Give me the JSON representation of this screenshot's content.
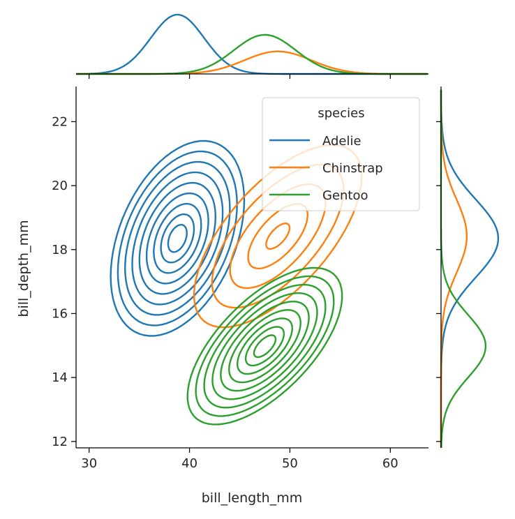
{
  "chart_data": {
    "type": "kde-joint",
    "xlabel": "bill_length_mm",
    "ylabel": "bill_depth_mm",
    "xlim": [
      28.7,
      63.8
    ],
    "ylim": [
      11.8,
      23.1
    ],
    "xticks": [
      30,
      40,
      50,
      60
    ],
    "yticks": [
      12,
      14,
      16,
      18,
      20,
      22
    ],
    "legend": {
      "title": "species",
      "placement": "top-right"
    },
    "series": [
      {
        "name": "Adelie",
        "color": "#1f77b4",
        "center": [
          38.8,
          18.35
        ],
        "sx": 2.66,
        "sy": 1.22,
        "rho": 0.39,
        "levels": 9
      },
      {
        "name": "Chinstrap",
        "color": "#ff7f0e",
        "center": [
          48.8,
          18.42
        ],
        "sx": 3.34,
        "sy": 1.14,
        "rho": 0.65,
        "levels": 5
      },
      {
        "name": "Gentoo",
        "color": "#2ca02c",
        "center": [
          47.5,
          14.98
        ],
        "sx": 3.08,
        "sy": 0.98,
        "rho": 0.64,
        "levels": 9
      }
    ],
    "marginal_x": {
      "Adelie": {
        "mean": 38.8,
        "sd": 2.66,
        "height": 1.0
      },
      "Chinstrap": {
        "mean": 48.8,
        "sd": 3.34,
        "height": 0.38
      },
      "Gentoo": {
        "mean": 47.5,
        "sd": 3.08,
        "height": 0.66
      }
    },
    "marginal_y": {
      "Adelie": {
        "mean": 18.35,
        "sd": 1.22,
        "height": 1.0
      },
      "Chinstrap": {
        "mean": 18.42,
        "sd": 1.14,
        "height": 0.45
      },
      "Gentoo": {
        "mean": 14.98,
        "sd": 0.98,
        "height": 0.78
      }
    }
  }
}
